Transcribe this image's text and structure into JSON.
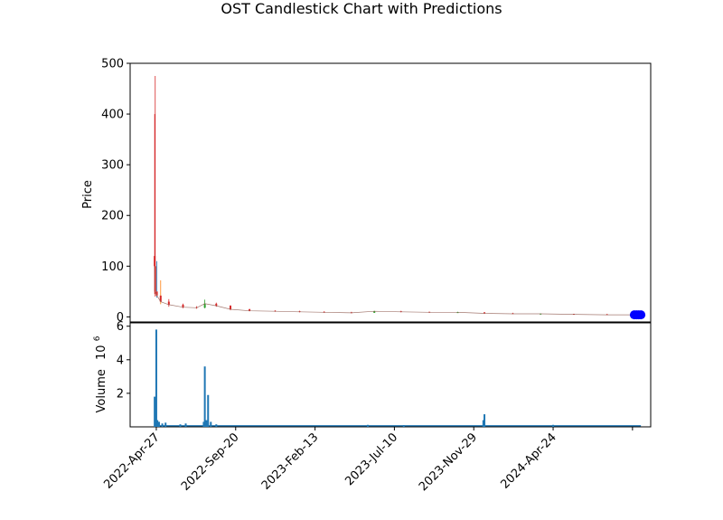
{
  "chart_data": {
    "type": "candlestick",
    "title": "OST Candlestick Chart with Predictions",
    "price_panel": {
      "ylabel": "Price",
      "ylim": [
        -10,
        500
      ],
      "yticks": [
        0,
        100,
        200,
        300,
        400,
        500
      ],
      "candles": [
        {
          "date": "2022-Apr-24",
          "open": 120,
          "high": 400,
          "low": 45,
          "close": 100
        },
        {
          "date": "2022-Apr-25",
          "open": 100,
          "high": 475,
          "low": 40,
          "close": 50
        },
        {
          "date": "2022-Apr-28",
          "open": 50,
          "high": 110,
          "low": 38,
          "close": 42
        },
        {
          "date": "2022-May-05",
          "open": 42,
          "high": 72,
          "low": 25,
          "close": 30
        },
        {
          "date": "2022-May-20",
          "open": 30,
          "high": 35,
          "low": 20,
          "close": 24
        },
        {
          "date": "2022-Jun-15",
          "open": 24,
          "high": 26,
          "low": 17,
          "close": 19
        },
        {
          "date": "2022-Jul-10",
          "open": 19,
          "high": 21,
          "low": 16,
          "close": 18
        },
        {
          "date": "2022-Jul-25",
          "open": 18,
          "high": 34,
          "low": 17,
          "close": 26
        },
        {
          "date": "2022-Aug-15",
          "open": 26,
          "high": 28,
          "low": 20,
          "close": 22
        },
        {
          "date": "2022-Sep-10",
          "open": 22,
          "high": 23,
          "low": 13,
          "close": 15
        },
        {
          "date": "2022-Oct-15",
          "open": 15,
          "high": 16,
          "low": 11,
          "close": 12
        },
        {
          "date": "2022-Dec-01",
          "open": 12,
          "high": 13,
          "low": 10,
          "close": 11
        },
        {
          "date": "2023-Jan-15",
          "open": 11,
          "high": 12,
          "low": 9,
          "close": 10
        },
        {
          "date": "2023-Mar-01",
          "open": 10,
          "high": 11,
          "low": 8,
          "close": 9
        },
        {
          "date": "2023-Apr-20",
          "open": 9,
          "high": 10,
          "low": 7,
          "close": 8
        },
        {
          "date": "2023-Jun-01",
          "open": 8,
          "high": 12,
          "low": 8,
          "close": 11
        },
        {
          "date": "2023-Jul-20",
          "open": 11,
          "high": 12,
          "low": 9,
          "close": 10
        },
        {
          "date": "2023-Sep-10",
          "open": 10,
          "high": 10,
          "low": 8,
          "close": 9
        },
        {
          "date": "2023-Nov-01",
          "open": 9,
          "high": 10,
          "low": 8,
          "close": 9
        },
        {
          "date": "2023-Dec-20",
          "open": 9,
          "high": 9,
          "low": 6,
          "close": 7
        },
        {
          "date": "2024-Feb-10",
          "open": 7,
          "high": 8,
          "low": 6,
          "close": 6
        },
        {
          "date": "2024-Apr-01",
          "open": 6,
          "high": 7,
          "low": 5,
          "close": 6
        },
        {
          "date": "2024-Jun-01",
          "open": 6,
          "high": 6,
          "low": 4,
          "close": 5
        },
        {
          "date": "2024-Aug-01",
          "open": 5,
          "high": 6,
          "low": 4,
          "close": 4
        },
        {
          "date": "2024-Sep-15",
          "open": 4,
          "high": 5,
          "low": 3,
          "close": 4
        }
      ],
      "predictions": [
        {
          "date": "2024-Sep-20",
          "value": 4
        },
        {
          "date": "2024-Sep-24",
          "value": 4
        },
        {
          "date": "2024-Sep-28",
          "value": 4
        },
        {
          "date": "2024-Oct-02",
          "value": 4
        }
      ]
    },
    "volume_panel": {
      "ylabel": "Volume",
      "scale_label": "10",
      "scale_exponent": "6",
      "ylim": [
        0,
        6.2
      ],
      "yticks": [
        2,
        4,
        6
      ],
      "bars": [
        {
          "date": "2022-Apr-24",
          "value": 1.8
        },
        {
          "date": "2022-Apr-25",
          "value": 0.5
        },
        {
          "date": "2022-Apr-27",
          "value": 5.8
        },
        {
          "date": "2022-Apr-29",
          "value": 0.4
        },
        {
          "date": "2022-May-02",
          "value": 0.3
        },
        {
          "date": "2022-May-08",
          "value": 0.2
        },
        {
          "date": "2022-May-14",
          "value": 0.25
        },
        {
          "date": "2022-Jun-10",
          "value": 0.15
        },
        {
          "date": "2022-Jun-20",
          "value": 0.2
        },
        {
          "date": "2022-Jul-23",
          "value": 0.3
        },
        {
          "date": "2022-Jul-25",
          "value": 3.6
        },
        {
          "date": "2022-Jul-28",
          "value": 0.4
        },
        {
          "date": "2022-Jul-31",
          "value": 1.9
        },
        {
          "date": "2022-Aug-05",
          "value": 0.3
        },
        {
          "date": "2022-Aug-15",
          "value": 0.15
        },
        {
          "date": "2023-May-20",
          "value": 0.12
        },
        {
          "date": "2023-Jul-25",
          "value": 0.1
        },
        {
          "date": "2023-Dec-18",
          "value": 0.4
        },
        {
          "date": "2023-Dec-20",
          "value": 0.75
        },
        {
          "date": "2024-Apr-24",
          "value": 0.12
        }
      ]
    },
    "xaxis": {
      "ticks": [
        "2022-Apr-27",
        "2022-Sep-20",
        "2023-Feb-13",
        "2023-Jul-10",
        "2023-Nov-29",
        "2024-Apr-24",
        ""
      ],
      "xlim": [
        "2022-Mar-10",
        "2024-Oct-20"
      ]
    },
    "colors": {
      "up": "#2ca02c",
      "down": "#d62728",
      "wick_extra": "#1f77b4",
      "wick_extra2": "#ff7f0e",
      "volume": "#1f77b4",
      "prediction": "#0000ff"
    }
  }
}
